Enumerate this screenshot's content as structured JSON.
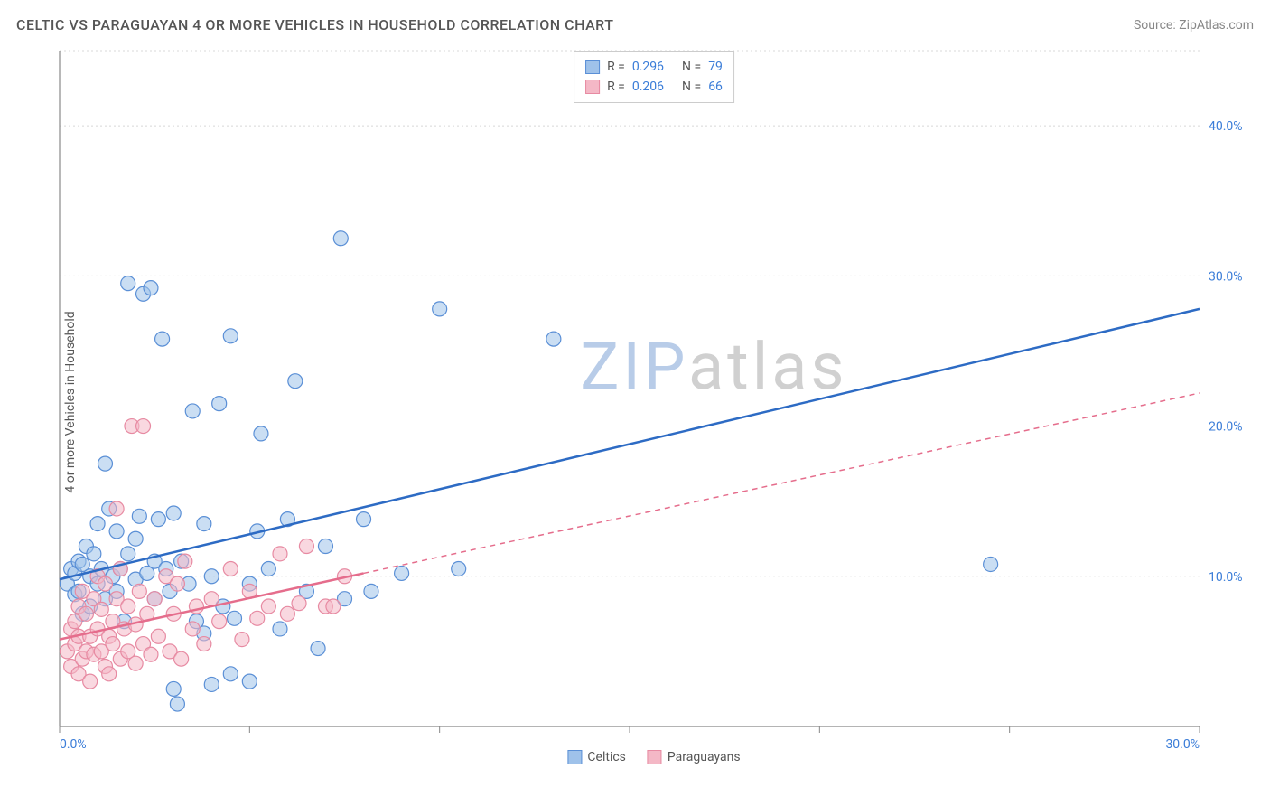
{
  "title": "CELTIC VS PARAGUAYAN 4 OR MORE VEHICLES IN HOUSEHOLD CORRELATION CHART",
  "source": "Source: ZipAtlas.com",
  "ylabel": "4 or more Vehicles in Household",
  "watermark": {
    "text_zip": "ZIP",
    "text_atlas": "atlas",
    "color_zip": "#b8cce8",
    "color_atlas": "#d0d0d0"
  },
  "chart": {
    "type": "scatter",
    "plot_bg": "#ffffff",
    "grid_color": "#d8d8d8",
    "axis_color": "#888888",
    "tick_color": "#888888",
    "xlim": [
      0,
      30
    ],
    "ylim": [
      0,
      45
    ],
    "xticks": [
      0,
      5,
      10,
      15,
      20,
      25,
      30
    ],
    "yticks_grid": [
      10,
      20,
      30,
      40,
      45
    ],
    "xlabels": [
      {
        "v": 0,
        "t": "0.0%"
      },
      {
        "v": 30,
        "t": "30.0%"
      }
    ],
    "ylabels": [
      {
        "v": 10,
        "t": "10.0%"
      },
      {
        "v": 20,
        "t": "20.0%"
      },
      {
        "v": 30,
        "t": "30.0%"
      },
      {
        "v": 40,
        "t": "40.0%"
      }
    ],
    "marker_radius": 8,
    "marker_opacity": 0.55,
    "trend_line_width": 2.5,
    "trend_dash": "6,5",
    "series": [
      {
        "name": "Celtics",
        "fill": "#9fc2ea",
        "stroke": "#5a8fd6",
        "trend_color": "#2d6bc4",
        "R": "0.296",
        "N": "79",
        "trend_solid": {
          "x1": 0,
          "y1": 9.8,
          "x2": 30,
          "y2": 27.8
        },
        "trend_dash_ext": null,
        "points": [
          [
            0.2,
            9.5
          ],
          [
            0.3,
            10.5
          ],
          [
            0.4,
            8.8
          ],
          [
            0.4,
            10.2
          ],
          [
            0.5,
            11.0
          ],
          [
            0.5,
            9.0
          ],
          [
            0.6,
            10.8
          ],
          [
            0.6,
            7.5
          ],
          [
            0.7,
            12.0
          ],
          [
            0.8,
            10.0
          ],
          [
            0.8,
            8.0
          ],
          [
            0.9,
            11.5
          ],
          [
            1.0,
            9.5
          ],
          [
            1.0,
            13.5
          ],
          [
            1.1,
            10.5
          ],
          [
            1.2,
            17.5
          ],
          [
            1.2,
            8.5
          ],
          [
            1.3,
            14.5
          ],
          [
            1.4,
            10.0
          ],
          [
            1.5,
            9.0
          ],
          [
            1.5,
            13.0
          ],
          [
            1.6,
            10.5
          ],
          [
            1.7,
            7.0
          ],
          [
            1.8,
            11.5
          ],
          [
            1.8,
            29.5
          ],
          [
            2.0,
            9.8
          ],
          [
            2.0,
            12.5
          ],
          [
            2.1,
            14.0
          ],
          [
            2.2,
            28.8
          ],
          [
            2.3,
            10.2
          ],
          [
            2.4,
            29.2
          ],
          [
            2.5,
            11.0
          ],
          [
            2.5,
            8.5
          ],
          [
            2.6,
            13.8
          ],
          [
            2.7,
            25.8
          ],
          [
            2.8,
            10.5
          ],
          [
            2.9,
            9.0
          ],
          [
            3.0,
            14.2
          ],
          [
            3.0,
            2.5
          ],
          [
            3.1,
            1.5
          ],
          [
            3.2,
            11.0
          ],
          [
            3.4,
            9.5
          ],
          [
            3.5,
            21.0
          ],
          [
            3.6,
            7.0
          ],
          [
            3.8,
            6.2
          ],
          [
            3.8,
            13.5
          ],
          [
            4.0,
            10.0
          ],
          [
            4.0,
            2.8
          ],
          [
            4.2,
            21.5
          ],
          [
            4.3,
            8.0
          ],
          [
            4.5,
            26.0
          ],
          [
            4.5,
            3.5
          ],
          [
            4.6,
            7.2
          ],
          [
            5.0,
            9.5
          ],
          [
            5.0,
            3.0
          ],
          [
            5.2,
            13.0
          ],
          [
            5.3,
            19.5
          ],
          [
            5.5,
            10.5
          ],
          [
            5.8,
            6.5
          ],
          [
            6.0,
            13.8
          ],
          [
            6.2,
            23.0
          ],
          [
            6.5,
            9.0
          ],
          [
            6.8,
            5.2
          ],
          [
            7.0,
            12.0
          ],
          [
            7.4,
            32.5
          ],
          [
            7.5,
            8.5
          ],
          [
            8.0,
            13.8
          ],
          [
            8.2,
            9.0
          ],
          [
            9.0,
            10.2
          ],
          [
            10.0,
            27.8
          ],
          [
            10.5,
            10.5
          ],
          [
            13.0,
            25.8
          ],
          [
            24.5,
            10.8
          ]
        ]
      },
      {
        "name": "Paraguayans",
        "fill": "#f4b8c6",
        "stroke": "#e78aa2",
        "trend_color": "#e56d8c",
        "R": "0.206",
        "N": "66",
        "trend_solid": {
          "x1": 0,
          "y1": 5.8,
          "x2": 8,
          "y2": 10.2
        },
        "trend_dash_ext": {
          "x1": 8,
          "y1": 10.2,
          "x2": 30,
          "y2": 22.2
        },
        "points": [
          [
            0.2,
            5.0
          ],
          [
            0.3,
            6.5
          ],
          [
            0.3,
            4.0
          ],
          [
            0.4,
            7.0
          ],
          [
            0.4,
            5.5
          ],
          [
            0.5,
            8.0
          ],
          [
            0.5,
            3.5
          ],
          [
            0.5,
            6.0
          ],
          [
            0.6,
            4.5
          ],
          [
            0.6,
            9.0
          ],
          [
            0.7,
            5.0
          ],
          [
            0.7,
            7.5
          ],
          [
            0.8,
            6.0
          ],
          [
            0.8,
            3.0
          ],
          [
            0.9,
            8.5
          ],
          [
            0.9,
            4.8
          ],
          [
            1.0,
            6.5
          ],
          [
            1.0,
            10.0
          ],
          [
            1.1,
            5.0
          ],
          [
            1.1,
            7.8
          ],
          [
            1.2,
            4.0
          ],
          [
            1.2,
            9.5
          ],
          [
            1.3,
            6.0
          ],
          [
            1.3,
            3.5
          ],
          [
            1.4,
            7.0
          ],
          [
            1.4,
            5.5
          ],
          [
            1.5,
            8.5
          ],
          [
            1.5,
            14.5
          ],
          [
            1.6,
            4.5
          ],
          [
            1.6,
            10.5
          ],
          [
            1.7,
            6.5
          ],
          [
            1.8,
            5.0
          ],
          [
            1.8,
            8.0
          ],
          [
            1.9,
            20.0
          ],
          [
            2.0,
            6.8
          ],
          [
            2.0,
            4.2
          ],
          [
            2.1,
            9.0
          ],
          [
            2.2,
            5.5
          ],
          [
            2.2,
            20.0
          ],
          [
            2.3,
            7.5
          ],
          [
            2.4,
            4.8
          ],
          [
            2.5,
            8.5
          ],
          [
            2.6,
            6.0
          ],
          [
            2.8,
            10.0
          ],
          [
            2.9,
            5.0
          ],
          [
            3.0,
            7.5
          ],
          [
            3.1,
            9.5
          ],
          [
            3.2,
            4.5
          ],
          [
            3.3,
            11.0
          ],
          [
            3.5,
            6.5
          ],
          [
            3.6,
            8.0
          ],
          [
            3.8,
            5.5
          ],
          [
            4.0,
            8.5
          ],
          [
            4.2,
            7.0
          ],
          [
            4.5,
            10.5
          ],
          [
            4.8,
            5.8
          ],
          [
            5.0,
            9.0
          ],
          [
            5.2,
            7.2
          ],
          [
            5.5,
            8.0
          ],
          [
            5.8,
            11.5
          ],
          [
            6.0,
            7.5
          ],
          [
            6.3,
            8.2
          ],
          [
            6.5,
            12.0
          ],
          [
            7.0,
            8.0
          ],
          [
            7.2,
            8.0
          ],
          [
            7.5,
            10.0
          ]
        ]
      }
    ]
  },
  "legend_top": {
    "rows": [
      {
        "swatch_fill": "#9fc2ea",
        "swatch_stroke": "#5a8fd6",
        "R_label": "R =",
        "R": "0.296",
        "N_label": "N =",
        "N": "79"
      },
      {
        "swatch_fill": "#f4b8c6",
        "swatch_stroke": "#e78aa2",
        "R_label": "R =",
        "R": "0.206",
        "N_label": "N =",
        "N": "66"
      }
    ]
  },
  "legend_bottom": {
    "items": [
      {
        "swatch_fill": "#9fc2ea",
        "swatch_stroke": "#5a8fd6",
        "label": "Celtics"
      },
      {
        "swatch_fill": "#f4b8c6",
        "swatch_stroke": "#e78aa2",
        "label": "Paraguayans"
      }
    ]
  }
}
